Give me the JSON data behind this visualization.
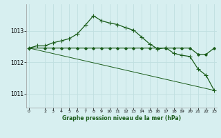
{
  "title": "Graphe pression niveau de la mer (hPa)",
  "background_color": "#d7eff0",
  "grid_color": "#c0dfe0",
  "line_color": "#1a5c1a",
  "xlim": [
    -0.3,
    23.3
  ],
  "ylim": [
    1010.55,
    1013.85
  ],
  "y_ticks": [
    1011,
    1012,
    1013
  ],
  "x_ticks": [
    0,
    2,
    3,
    4,
    5,
    6,
    7,
    8,
    9,
    10,
    11,
    12,
    13,
    14,
    15,
    16,
    17,
    18,
    19,
    20,
    21,
    22,
    23
  ],
  "series1_x": [
    0,
    1,
    2,
    3,
    4,
    5,
    6,
    7,
    8,
    9,
    10,
    11,
    12,
    13,
    14,
    15,
    16,
    17,
    18,
    19,
    20,
    21,
    22,
    23
  ],
  "series1_y": [
    1012.45,
    1012.52,
    1012.52,
    1012.62,
    1012.68,
    1012.75,
    1012.9,
    1013.18,
    1013.48,
    1013.32,
    1013.25,
    1013.2,
    1013.1,
    1013.02,
    1012.8,
    1012.58,
    1012.42,
    1012.46,
    1012.28,
    1012.22,
    1012.18,
    1011.78,
    1011.58,
    1011.1
  ],
  "series2_x": [
    0,
    2,
    3,
    4,
    5,
    6,
    7,
    8,
    9,
    10,
    11,
    12,
    13,
    14,
    15,
    16,
    17,
    18,
    19,
    20,
    21,
    22,
    23
  ],
  "series2_y": [
    1012.45,
    1012.45,
    1012.45,
    1012.45,
    1012.45,
    1012.45,
    1012.45,
    1012.45,
    1012.45,
    1012.45,
    1012.45,
    1012.45,
    1012.45,
    1012.45,
    1012.45,
    1012.45,
    1012.45,
    1012.45,
    1012.45,
    1012.45,
    1012.25,
    1012.25,
    1012.45
  ],
  "series3_x": [
    0,
    23
  ],
  "series3_y": [
    1012.45,
    1011.1
  ]
}
